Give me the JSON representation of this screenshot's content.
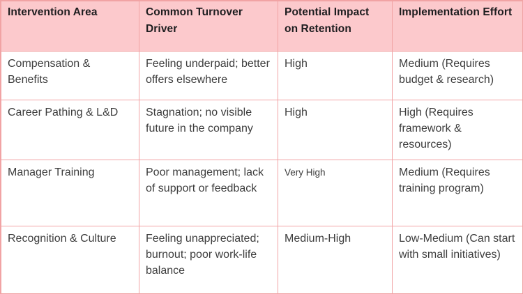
{
  "colors": {
    "header_bg": "#fcc9cc",
    "border": "#f1a3a4",
    "header_text": "#1d1d1f",
    "body_text": "#3d3d3d",
    "row_bg": "#ffffff"
  },
  "table": {
    "headers": [
      "Intervention Area",
      "Common Turnover Driver",
      "Potential Impact on Retention",
      "Implementation Effort"
    ],
    "rows": [
      {
        "intervention_area": "Compensation & Benefits",
        "turnover_driver": "Feeling underpaid; better offers elsewhere",
        "impact": "High",
        "effort": "Medium (Requires budget & research)"
      },
      {
        "intervention_area": "Career Pathing & L&D",
        "turnover_driver": "Stagnation; no visible future in the company",
        "impact": "High",
        "effort": "High (Requires framework & resources)"
      },
      {
        "intervention_area": "Manager Training",
        "turnover_driver": "Poor management; lack of support or feedback",
        "impact": "Very High",
        "effort": "Medium (Requires training program)"
      },
      {
        "intervention_area": "Recognition & Culture",
        "turnover_driver": "Feeling unappreciated; burnout; poor work-life balance",
        "impact": "Medium-High",
        "effort": "Low-Medium (Can start with small initiatives)"
      }
    ]
  }
}
